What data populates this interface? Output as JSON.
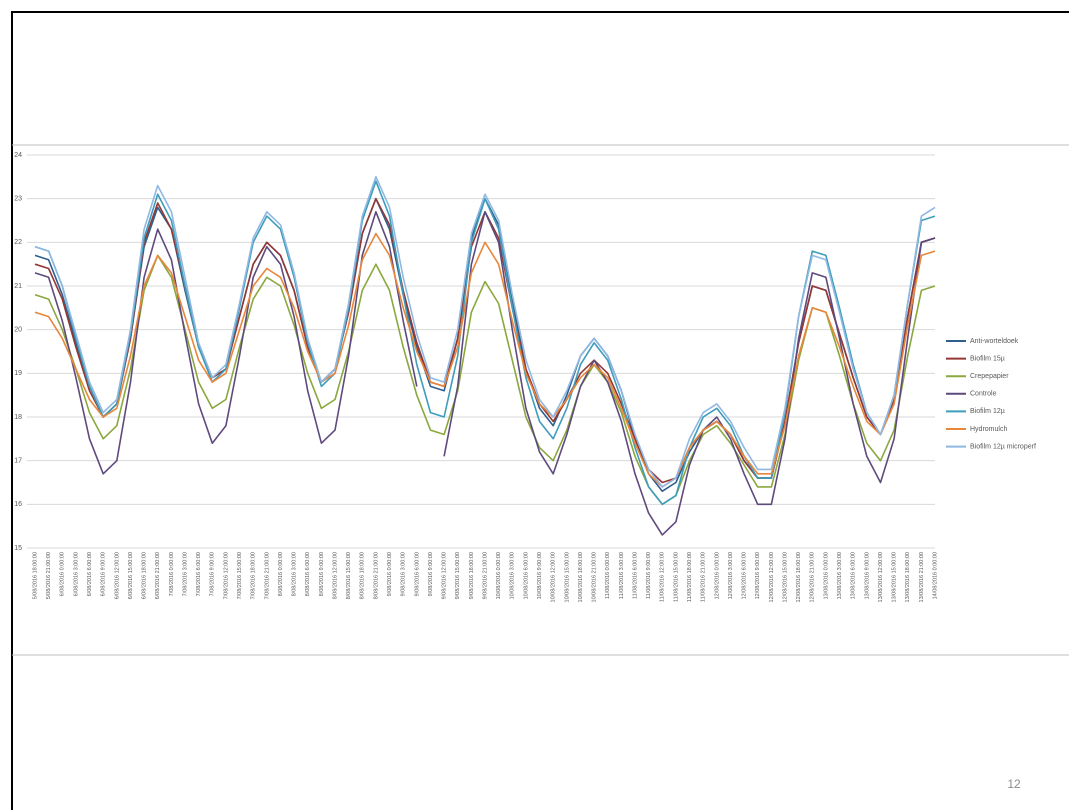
{
  "page_number": "12",
  "chart_data": {
    "type": "line",
    "categories": [
      "5/08/2016 18:00:00",
      "5/08/2016 21:00:00",
      "6/08/2016 0:00:00",
      "6/08/2016 3:00:00",
      "6/08/2016 6:00:00",
      "6/08/2016 9:00:00",
      "6/08/2016 12:00:00",
      "6/08/2016 15:00:00",
      "6/08/2016 18:00:00",
      "6/08/2016 21:00:00",
      "7/08/2016 0:00:00",
      "7/08/2016 3:00:00",
      "7/08/2016 6:00:00",
      "7/08/2016 9:00:00",
      "7/08/2016 12:00:00",
      "7/08/2016 15:00:00",
      "7/08/2016 18:00:00",
      "7/08/2016 21:00:00",
      "8/08/2016 0:00:00",
      "8/08/2016 3:00:00",
      "8/08/2016 6:00:00",
      "8/08/2016 9:00:00",
      "8/08/2016 12:00:00",
      "8/08/2016 15:00:00",
      "8/08/2016 18:00:00",
      "8/08/2016 21:00:00",
      "9/08/2016 0:00:00",
      "9/08/2016 3:00:00",
      "9/08/2016 6:00:00",
      "9/08/2016 9:00:00",
      "9/08/2016 12:00:00",
      "9/08/2016 15:00:00",
      "9/08/2016 18:00:00",
      "9/08/2016 21:00:00",
      "10/08/2016 0:00:00",
      "10/08/2016 3:00:00",
      "10/08/2016 6:00:00",
      "10/08/2016 9:00:00",
      "10/08/2016 12:00:00",
      "10/08/2016 15:00:00",
      "10/08/2016 18:00:00",
      "10/08/2016 21:00:00",
      "11/08/2016 0:00:00",
      "11/08/2016 3:00:00",
      "11/08/2016 6:00:00",
      "11/08/2016 9:00:00",
      "11/08/2016 12:00:00",
      "11/08/2016 15:00:00",
      "11/08/2016 18:00:00",
      "11/08/2016 21:00:00",
      "12/08/2016 0:00:00",
      "12/08/2016 3:00:00",
      "12/08/2016 6:00:00",
      "12/08/2016 9:00:00",
      "12/08/2016 12:00:00",
      "12/08/2016 15:00:00",
      "12/08/2016 18:00:00",
      "12/08/2016 21:00:00",
      "13/08/2016 0:00:00",
      "13/08/2016 3:00:00",
      "13/08/2016 6:00:00",
      "13/08/2016 9:00:00",
      "13/08/2016 12:00:00",
      "13/08/2016 15:00:00",
      "13/08/2016 18:00:00",
      "13/08/2016 21:00:00",
      "14/08/2016 0:00:00"
    ],
    "series": [
      {
        "name": "Anti-worteldoek",
        "color": "#2e5f8e",
        "values": [
          21.7,
          21.6,
          20.8,
          19.7,
          18.7,
          18.0,
          18.3,
          19.8,
          21.9,
          22.8,
          22.3,
          20.9,
          19.6,
          18.9,
          19.1,
          20.3,
          21.5,
          22.0,
          21.7,
          20.9,
          19.6,
          18.8,
          19.1,
          20.4,
          22.2,
          23.0,
          22.3,
          20.8,
          19.6,
          18.7,
          18.6,
          19.8,
          22.1,
          23.0,
          22.4,
          20.7,
          19.1,
          18.2,
          17.8,
          18.5,
          19.4,
          19.8,
          19.4,
          18.6,
          17.5,
          16.7,
          16.3,
          16.5,
          17.2,
          17.7,
          17.9,
          17.6,
          17.0,
          16.6,
          16.6,
          17.9,
          19.7,
          21.0,
          20.9,
          19.9,
          18.9,
          18.0,
          17.6,
          18.4,
          20.3,
          22.0,
          22.1
        ]
      },
      {
        "name": "Biofilm 15µ",
        "color": "#953735",
        "values": [
          21.5,
          21.4,
          20.7,
          19.6,
          18.6,
          18.0,
          18.3,
          19.8,
          22.0,
          22.9,
          22.3,
          21.0,
          19.6,
          18.9,
          19.1,
          20.3,
          21.5,
          22.0,
          21.7,
          20.9,
          19.6,
          18.8,
          19.1,
          20.4,
          22.2,
          23.0,
          22.4,
          20.9,
          19.7,
          18.8,
          18.7,
          19.8,
          21.9,
          22.7,
          22.1,
          20.5,
          19.1,
          18.3,
          17.9,
          18.4,
          19.0,
          19.3,
          19.0,
          18.3,
          17.5,
          16.8,
          16.5,
          16.6,
          17.3,
          17.7,
          17.9,
          17.6,
          17.0,
          16.6,
          16.6,
          17.9,
          19.7,
          21.0,
          20.9,
          19.9,
          18.9,
          18.0,
          17.6,
          18.4,
          20.3,
          22.0,
          22.1
        ]
      },
      {
        "name": "Crepepapier",
        "color": "#8aa83e",
        "values": [
          20.8,
          20.7,
          20.0,
          19.1,
          18.1,
          17.5,
          17.8,
          19.1,
          20.9,
          21.7,
          21.2,
          20.0,
          18.8,
          18.2,
          18.4,
          19.6,
          20.7,
          21.2,
          21.0,
          20.1,
          19.0,
          18.2,
          18.4,
          19.5,
          20.9,
          21.5,
          20.9,
          19.6,
          18.5,
          17.7,
          17.6,
          18.6,
          20.4,
          21.1,
          20.6,
          19.3,
          18.0,
          17.3,
          17.0,
          17.7,
          18.7,
          19.2,
          18.8,
          18.1,
          17.1,
          16.4,
          16.0,
          16.2,
          17.0,
          17.6,
          17.8,
          17.4,
          16.9,
          16.4,
          16.4,
          17.6,
          19.3,
          20.5,
          20.4,
          19.4,
          18.3,
          17.4,
          17.0,
          17.7,
          19.4,
          20.9,
          21.0
        ]
      },
      {
        "name": "Controle",
        "color": "#5f4a7e",
        "values": [
          21.3,
          21.2,
          20.2,
          18.9,
          17.5,
          16.7,
          17.0,
          18.8,
          21.2,
          22.3,
          21.6,
          19.9,
          18.3,
          17.4,
          17.8,
          19.4,
          21.2,
          21.9,
          21.5,
          20.3,
          18.6,
          17.4,
          17.7,
          19.4,
          21.7,
          22.7,
          21.9,
          20.2,
          18.7,
          null,
          17.1,
          18.7,
          21.5,
          22.7,
          22.0,
          20.0,
          18.2,
          17.2,
          16.7,
          17.6,
          18.7,
          19.3,
          18.8,
          17.9,
          16.7,
          15.8,
          15.3,
          15.6,
          16.9,
          17.7,
          18.0,
          17.5,
          16.7,
          16.0,
          16.0,
          17.5,
          19.8,
          21.3,
          21.2,
          19.8,
          18.3,
          17.1,
          16.5,
          17.5,
          19.8,
          22.0,
          22.1
        ]
      },
      {
        "name": "Biofilm 12µ",
        "color": "#3e9dba",
        "values": [
          21.9,
          21.8,
          21.0,
          19.8,
          18.7,
          18.0,
          18.3,
          19.9,
          22.1,
          23.1,
          22.5,
          21.0,
          19.6,
          18.8,
          19.1,
          20.5,
          22.0,
          22.6,
          22.3,
          21.2,
          19.7,
          18.7,
          19.0,
          20.5,
          22.5,
          23.4,
          22.6,
          20.8,
          19.2,
          18.1,
          18.0,
          19.4,
          22.0,
          23.0,
          22.3,
          20.5,
          18.9,
          17.9,
          17.5,
          18.2,
          19.2,
          19.7,
          19.3,
          18.4,
          17.3,
          16.4,
          16.0,
          16.2,
          17.3,
          18.0,
          18.2,
          17.8,
          17.1,
          16.6,
          16.6,
          18.1,
          20.3,
          21.8,
          21.7,
          20.5,
          19.2,
          18.1,
          17.6,
          18.5,
          20.6,
          22.5,
          22.6
        ]
      },
      {
        "name": "Hydromulch",
        "color": "#e8873a",
        "values": [
          20.4,
          20.3,
          19.8,
          19.1,
          18.4,
          18.0,
          18.2,
          19.4,
          21.0,
          21.7,
          21.3,
          20.3,
          19.3,
          18.8,
          19.0,
          20.0,
          21.0,
          21.4,
          21.2,
          20.5,
          19.5,
          18.8,
          19.0,
          20.1,
          21.6,
          22.2,
          21.7,
          20.5,
          19.5,
          18.8,
          18.7,
          19.6,
          21.3,
          22.0,
          21.5,
          20.2,
          19.0,
          18.3,
          18.0,
          18.4,
          18.9,
          19.2,
          18.9,
          18.2,
          17.4,
          16.7,
          16.4,
          16.6,
          17.3,
          17.7,
          17.9,
          17.6,
          17.1,
          16.7,
          16.7,
          17.8,
          19.4,
          20.5,
          20.4,
          19.6,
          18.7,
          17.9,
          17.6,
          18.3,
          20.1,
          21.7,
          21.8
        ]
      },
      {
        "name": "Biofilm 12µ microperf",
        "color": "#8fb8e3",
        "values": [
          21.9,
          21.8,
          21.0,
          19.9,
          18.8,
          18.1,
          18.4,
          20.0,
          22.3,
          23.3,
          22.7,
          21.2,
          19.7,
          18.9,
          19.2,
          20.6,
          22.1,
          22.7,
          22.4,
          21.3,
          19.8,
          18.8,
          19.1,
          20.6,
          22.6,
          23.5,
          22.8,
          21.2,
          19.9,
          18.9,
          18.8,
          20.0,
          22.2,
          23.1,
          22.5,
          20.8,
          19.3,
          18.4,
          18.0,
          18.6,
          19.4,
          19.8,
          19.4,
          18.6,
          17.6,
          16.8,
          16.4,
          16.6,
          17.5,
          18.1,
          18.3,
          17.9,
          17.3,
          16.8,
          16.8,
          18.2,
          20.3,
          21.7,
          21.6,
          20.4,
          19.1,
          18.1,
          17.6,
          18.5,
          20.6,
          22.6,
          22.8
        ]
      }
    ],
    "ylim": [
      15,
      24
    ],
    "yticks": [
      15,
      16,
      17,
      18,
      19,
      20,
      21,
      22,
      23,
      24
    ],
    "grid": true,
    "legend": "right"
  }
}
